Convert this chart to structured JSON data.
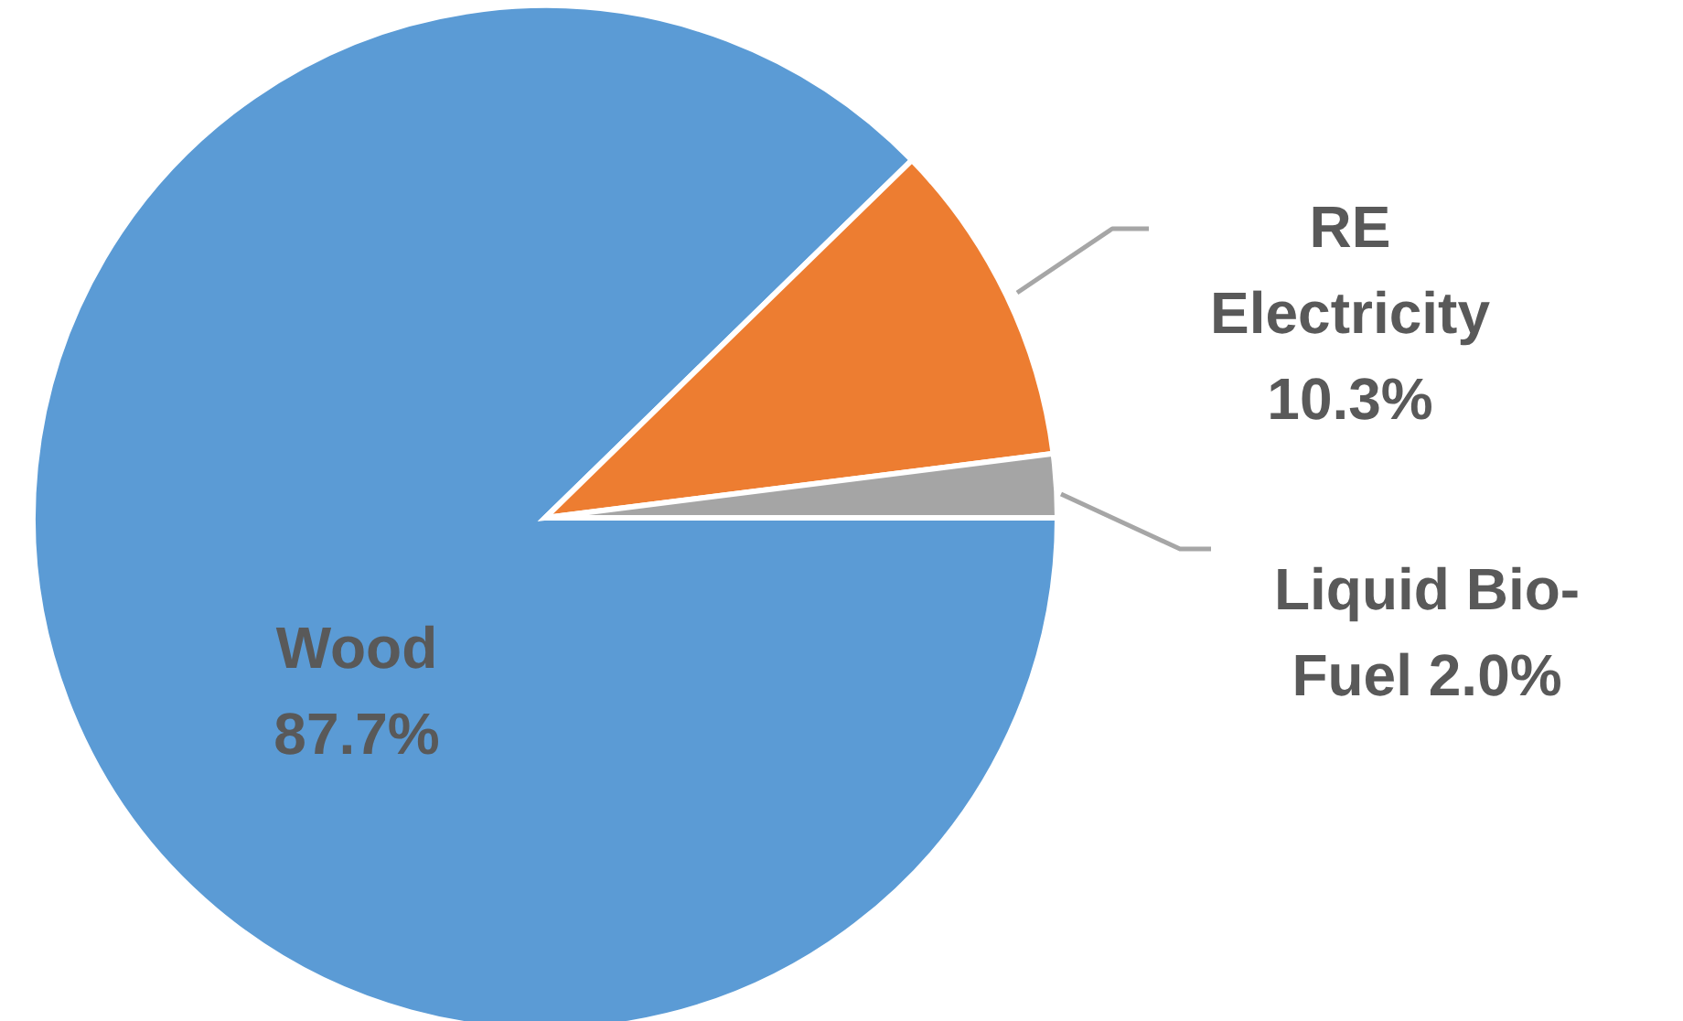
{
  "chart_data": {
    "type": "pie",
    "categories": [
      "Wood",
      "RE Electricity",
      "Liquid Bio-Fuel"
    ],
    "values": [
      87.7,
      10.3,
      2.0
    ],
    "colors": [
      "#5b9bd5",
      "#ed7d31",
      "#a5a5a5"
    ],
    "value_labels": [
      "87.7%",
      "10.3%",
      "2.0%"
    ]
  }
}
